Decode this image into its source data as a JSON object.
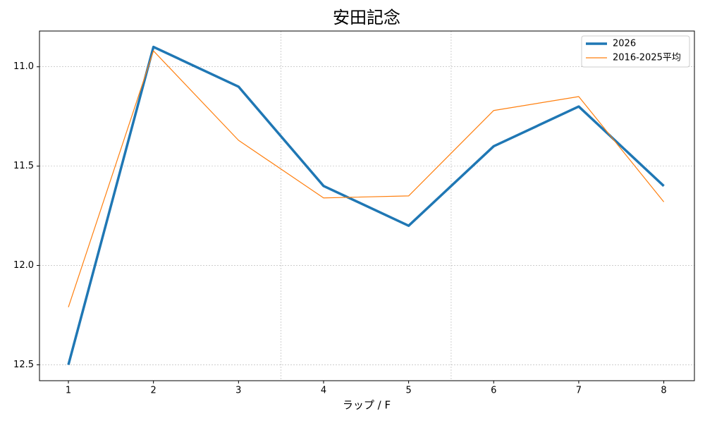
{
  "chart_data": {
    "type": "line",
    "title": "安田記念",
    "x_label": "ラップ / F",
    "x": [
      1,
      2,
      3,
      4,
      5,
      6,
      7,
      8
    ],
    "series": [
      {
        "name": "2026",
        "color": "#1f77b4",
        "width": 3.5,
        "values": [
          12.5,
          10.9,
          11.1,
          11.6,
          11.8,
          11.4,
          11.2,
          11.6
        ]
      },
      {
        "name": "2016-2025平均",
        "color": "#ff7f0e",
        "width": 1.2,
        "values": [
          12.21,
          10.92,
          11.37,
          11.66,
          11.65,
          11.22,
          11.15,
          11.68
        ]
      }
    ],
    "xlim": [
      0.66,
      8.36
    ],
    "xticks": [
      1,
      2,
      3,
      4,
      5,
      6,
      7,
      8
    ],
    "ylim": [
      10.82,
      12.58
    ],
    "y_inverted": true,
    "yticks": [
      {
        "value": 11,
        "label": "11.0"
      },
      {
        "value": 11.5,
        "label": "11.5"
      },
      {
        "value": 12,
        "label": "12.0"
      },
      {
        "value": 12.5,
        "label": "12.5"
      }
    ],
    "grid": true,
    "vlines": [
      3.5,
      5.5
    ],
    "legend": "upper-right"
  }
}
